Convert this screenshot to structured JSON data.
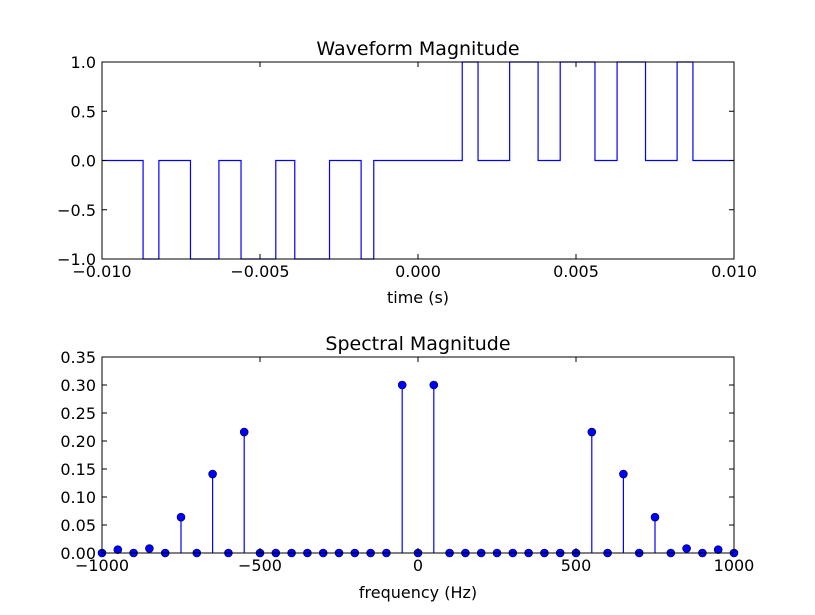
{
  "chart_data": [
    {
      "type": "line",
      "title": "Waveform Magnitude",
      "xlabel": "time (s)",
      "ylabel": "",
      "xlim": [
        -0.01,
        0.01
      ],
      "ylim": [
        -1.0,
        1.0
      ],
      "xticks": [
        -0.01,
        -0.005,
        0.0,
        0.005,
        0.01
      ],
      "xtick_labels": [
        "−0.010",
        "−0.005",
        "0.000",
        "0.005",
        "0.010"
      ],
      "yticks": [
        -1.0,
        -0.5,
        0.0,
        0.5,
        1.0
      ],
      "ytick_labels": [
        "−1.0",
        "−0.5",
        "0.0",
        "0.5",
        "1.0"
      ],
      "color": "#0000ff",
      "series": [
        {
          "x": [
            -0.01,
            -0.0087,
            -0.0087,
            -0.0082,
            -0.0082,
            -0.0072,
            -0.0072,
            -0.0063,
            -0.0063,
            -0.0056,
            -0.0056,
            -0.0045,
            -0.0045,
            -0.0039,
            -0.0039,
            -0.0028,
            -0.0028,
            -0.0018,
            -0.0018,
            -0.0014,
            -0.0014,
            0.0014,
            0.0014,
            0.0019,
            0.0019,
            0.0029,
            0.0029,
            0.0038,
            0.0038,
            0.0045,
            0.0045,
            0.0056,
            0.0056,
            0.0063,
            0.0063,
            0.0072,
            0.0072,
            0.0082,
            0.0082,
            0.0087,
            0.0087,
            0.01
          ],
          "y": [
            0,
            0,
            -1,
            -1,
            0,
            0,
            -1,
            -1,
            0,
            0,
            -1,
            -1,
            0,
            0,
            -1,
            -1,
            0,
            0,
            -1,
            -1,
            0,
            0,
            1,
            1,
            0,
            0,
            1,
            1,
            0,
            0,
            1,
            1,
            0,
            0,
            1,
            1,
            0,
            0,
            1,
            1,
            0,
            0
          ]
        }
      ]
    },
    {
      "type": "stem",
      "title": "Spectral Magnitude",
      "xlabel": "frequency (Hz)",
      "ylabel": "",
      "xlim": [
        -1000,
        1000
      ],
      "ylim": [
        0,
        0.35
      ],
      "xticks": [
        -1000,
        -500,
        0,
        500,
        1000
      ],
      "xtick_labels": [
        "−1000",
        "−500",
        "0",
        "500",
        "1000"
      ],
      "yticks": [
        0.0,
        0.05,
        0.1,
        0.15,
        0.2,
        0.25,
        0.3,
        0.35
      ],
      "ytick_labels": [
        "0.00",
        "0.05",
        "0.10",
        "0.15",
        "0.20",
        "0.25",
        "0.30",
        "0.35"
      ],
      "color": "#0000ff",
      "x": [
        -1000,
        -950,
        -900,
        -850,
        -800,
        -750,
        -700,
        -650,
        -600,
        -550,
        -500,
        -450,
        -400,
        -350,
        -300,
        -250,
        -200,
        -150,
        -100,
        -50,
        0,
        50,
        100,
        150,
        200,
        250,
        300,
        350,
        400,
        450,
        500,
        550,
        600,
        650,
        700,
        750,
        800,
        850,
        900,
        950,
        1000
      ],
      "y": [
        0.0,
        0.006,
        0.0,
        0.008,
        0.0,
        0.064,
        0.0,
        0.141,
        0.0,
        0.216,
        0.0,
        0.0,
        0.0,
        0.0,
        0.0,
        0.0,
        0.0,
        0.0,
        0.0,
        0.3,
        0.0,
        0.3,
        0.0,
        0.0,
        0.0,
        0.0,
        0.0,
        0.0,
        0.0,
        0.0,
        0.0,
        0.216,
        0.0,
        0.141,
        0.0,
        0.064,
        0.0,
        0.008,
        0.0,
        0.006,
        0.0
      ]
    }
  ]
}
